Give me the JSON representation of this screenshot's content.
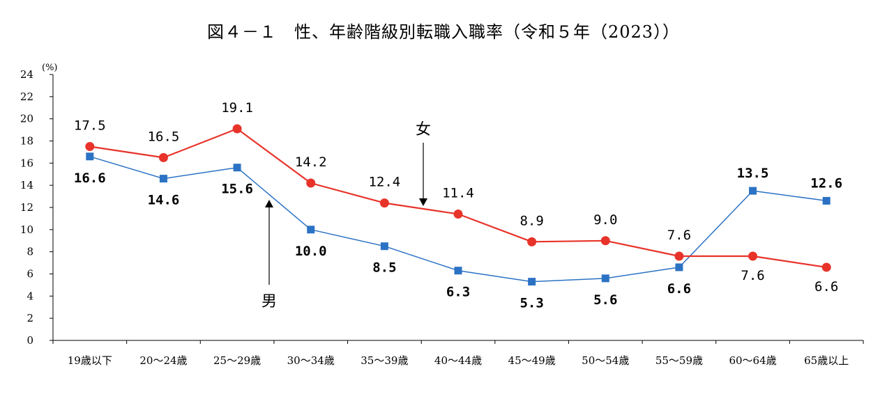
{
  "chart_data": {
    "type": "line",
    "title": "図４－１　性、年齢階級別転職入職率（令和５年（2023））",
    "ylabel": "(%)",
    "ylim": [
      0,
      24
    ],
    "yticks": [
      0,
      2,
      4,
      6,
      8,
      10,
      12,
      14,
      16,
      18,
      20,
      22,
      24
    ],
    "categories": [
      "19歳以下",
      "20～24歳",
      "25～29歳",
      "30～34歳",
      "35～39歳",
      "40～44歳",
      "45～49歳",
      "50～54歳",
      "55～59歳",
      "60～64歳",
      "65歳以上"
    ],
    "series": [
      {
        "name": "女",
        "color": "#e8332a",
        "marker": "circle",
        "values": [
          17.5,
          16.5,
          19.1,
          14.2,
          12.4,
          11.4,
          8.9,
          9.0,
          7.6,
          7.6,
          6.6
        ],
        "labels": [
          "17.5",
          "16.5",
          "19.1",
          "14.2",
          "12.4",
          "11.4",
          "8.9",
          "9.0",
          "7.6",
          "7.6",
          "6.6"
        ]
      },
      {
        "name": "男",
        "color": "#2b72c4",
        "marker": "square",
        "values": [
          16.6,
          14.6,
          15.6,
          10.0,
          8.5,
          6.3,
          5.3,
          5.6,
          6.6,
          13.5,
          12.6
        ],
        "labels": [
          "16.6",
          "14.6",
          "15.6",
          "10.0",
          "8.5",
          "6.3",
          "5.3",
          "5.6",
          "6.6",
          "13.5",
          "12.6"
        ]
      }
    ],
    "grid": false,
    "legend": "inline annotations with arrows"
  }
}
